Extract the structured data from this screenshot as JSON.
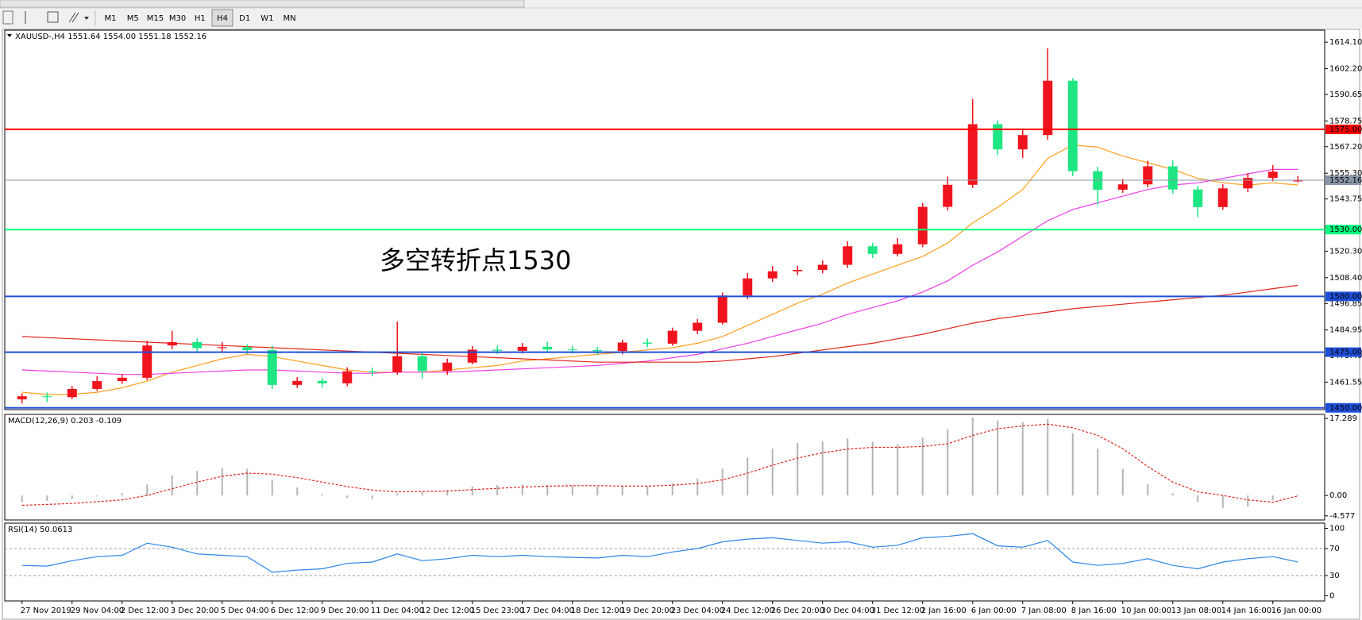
{
  "toolbar": {
    "timeframes": [
      "M1",
      "M5",
      "M15",
      "M30",
      "H1",
      "H4",
      "D1",
      "W1",
      "MN"
    ],
    "selected": 5
  },
  "chart_data": [
    {
      "type": "candlestick",
      "title": "XAUUSD-,H4  1551.64 1554.00 1551.18 1552.16",
      "categories": [
        "27 Nov 2019",
        null,
        "29 Nov 04:00",
        null,
        "2 Dec 12:00",
        null,
        "3 Dec 20:00",
        null,
        "5 Dec 04:00",
        null,
        "6 Dec 12:00",
        null,
        "9 Dec 20:00",
        null,
        "11 Dec 04:00",
        null,
        "12 Dec 12:00",
        null,
        "15 Dec 23:00",
        null,
        "17 Dec 04:00",
        null,
        "18 Dec 12:00",
        null,
        "19 Dec 20:00",
        null,
        "23 Dec 04:00",
        null,
        "24 Dec 12:00",
        null,
        "26 Dec 20:00",
        null,
        "30 Dec 04:00",
        null,
        "31 Dec 12:00",
        null,
        "2 Jan 16:00",
        null,
        "6 Jan 00:00",
        null,
        "7 Jan 08:00",
        null,
        "8 Jan 16:00",
        null,
        "10 Jan 00:00",
        null,
        "13 Jan 08:00",
        null,
        "14 Jan 16:00",
        null,
        "16 Jan 00:00",
        null
      ],
      "open": [
        1453.8,
        1455.2,
        1454.8,
        1458.5,
        1462.0,
        1463.5,
        1478.0,
        1479.5,
        1476.8,
        1477.2,
        1475.9,
        1460.3,
        1462.1,
        1461.0,
        1466.4,
        1466.0,
        1473.2,
        1466.5,
        1470.3,
        1476.1,
        1475.6,
        1477.4,
        1476.2,
        1476.0,
        1475.5,
        1479.3,
        1478.8,
        1484.6,
        1488.2,
        1500.4,
        1508.1,
        1511.3,
        1511.9,
        1514.2,
        1522.5,
        1519.1,
        1523.4,
        1540.2,
        1550.1,
        1577.3,
        1566.0,
        1572.4,
        1596.8,
        1556.2,
        1547.9,
        1550.3,
        1558.4,
        1548.0,
        1540.1,
        1548.5,
        1553.2,
        1551.64
      ],
      "high": [
        1456.5,
        1456.9,
        1459.8,
        1464.3,
        1465.2,
        1480.1,
        1484.6,
        1481.2,
        1479.4,
        1478.5,
        1477.9,
        1463.8,
        1463.5,
        1468.2,
        1468.1,
        1488.7,
        1474.6,
        1472.1,
        1477.8,
        1477.9,
        1479.1,
        1479.6,
        1477.8,
        1477.4,
        1480.6,
        1481.1,
        1486.0,
        1489.9,
        1501.8,
        1510.5,
        1513.6,
        1513.8,
        1516.1,
        1524.8,
        1524.1,
        1526.2,
        1541.9,
        1553.8,
        1588.6,
        1578.9,
        1574.8,
        1611.4,
        1597.9,
        1558.2,
        1552.7,
        1560.9,
        1561.2,
        1549.6,
        1550.3,
        1555.4,
        1558.9,
        1554.0
      ],
      "low": [
        1451.9,
        1452.6,
        1453.9,
        1457.6,
        1460.8,
        1462.4,
        1476.3,
        1474.9,
        1475.1,
        1474.3,
        1458.4,
        1458.9,
        1459.1,
        1459.7,
        1464.2,
        1464.9,
        1463.2,
        1464.8,
        1469.5,
        1474.1,
        1474.4,
        1474.8,
        1474.3,
        1473.9,
        1474.0,
        1477.2,
        1477.9,
        1483.1,
        1487.4,
        1498.9,
        1506.5,
        1509.6,
        1510.4,
        1512.8,
        1517.2,
        1518.0,
        1522.1,
        1538.6,
        1548.7,
        1563.4,
        1562.2,
        1570.3,
        1554.0,
        1541.2,
        1546.5,
        1548.9,
        1546.2,
        1535.6,
        1538.9,
        1546.8,
        1551.7,
        1551.18
      ],
      "close": [
        1455.2,
        1454.8,
        1458.5,
        1462.0,
        1463.5,
        1478.0,
        1479.5,
        1476.8,
        1477.2,
        1475.9,
        1460.3,
        1462.1,
        1461.0,
        1466.4,
        1466.0,
        1473.2,
        1466.5,
        1470.3,
        1476.1,
        1475.6,
        1477.4,
        1476.2,
        1476.0,
        1475.5,
        1479.3,
        1478.8,
        1484.6,
        1488.2,
        1500.4,
        1508.1,
        1511.3,
        1511.9,
        1514.2,
        1522.5,
        1519.1,
        1523.4,
        1540.2,
        1550.1,
        1577.3,
        1566.0,
        1572.4,
        1596.8,
        1556.2,
        1547.9,
        1550.3,
        1558.4,
        1548.0,
        1540.1,
        1548.5,
        1553.2,
        1556.0,
        1552.16
      ],
      "up_color": "#f0141e",
      "down_color": "#1ee682",
      "overlays": [
        {
          "color": "#ff9f1c",
          "values": [
            1457,
            1456,
            1456,
            1457,
            1459,
            1462,
            1466,
            1469,
            1472,
            1474,
            1473,
            1471,
            1469,
            1467,
            1466,
            1466,
            1466,
            1467,
            1468,
            1469,
            1471,
            1472,
            1473,
            1474,
            1475,
            1476,
            1477,
            1479,
            1482,
            1487,
            1492,
            1497,
            1501,
            1506,
            1510,
            1514,
            1518,
            1524,
            1533,
            1540,
            1548,
            1562,
            1568,
            1567,
            1563,
            1560,
            1557,
            1553,
            1551,
            1550,
            1551,
            1550
          ]
        },
        {
          "color": "#ee3ee8",
          "values": [
            1467,
            1466.5,
            1466,
            1465.5,
            1465,
            1465,
            1465.5,
            1466,
            1466.5,
            1467,
            1467,
            1466.5,
            1466,
            1465.5,
            1465.5,
            1466,
            1466,
            1466,
            1466.5,
            1467,
            1467.5,
            1468,
            1468.5,
            1469,
            1470,
            1471,
            1472.5,
            1474,
            1476.5,
            1479,
            1482,
            1485,
            1488,
            1492,
            1495,
            1498,
            1502,
            1507,
            1514,
            1520,
            1527,
            1534,
            1539,
            1542,
            1545,
            1548,
            1550,
            1551,
            1553,
            1555,
            1557,
            1557
          ]
        },
        {
          "color": "#e0261c",
          "values": [
            1482,
            1481.5,
            1481,
            1480.5,
            1480,
            1479.5,
            1479,
            1478.5,
            1478,
            1477.5,
            1477,
            1476.5,
            1476,
            1475.5,
            1475,
            1474.5,
            1474,
            1473.5,
            1473,
            1472.5,
            1472,
            1471.5,
            1471,
            1470.5,
            1470.5,
            1470.5,
            1470.5,
            1470.5,
            1471,
            1472,
            1473,
            1474.5,
            1476,
            1477.5,
            1479,
            1481,
            1483,
            1485.5,
            1488,
            1490,
            1491.5,
            1493,
            1494.5,
            1495.5,
            1496.5,
            1497.5,
            1498.5,
            1499.5,
            1500.5,
            1502,
            1503.5,
            1505
          ]
        }
      ],
      "hlines": [
        {
          "value": 1575,
          "label": "1575.00",
          "color": "#ff0000"
        },
        {
          "value": 1552.16,
          "color": "#8a96a8"
        },
        {
          "value": 1530,
          "label": "1530.00",
          "color": "#00ff7f"
        },
        {
          "value": 1500,
          "label": "1500.00",
          "color": "#1f4fd8"
        },
        {
          "value": 1475,
          "label": "1475.00",
          "color": "#1f4fd8"
        },
        {
          "value": 1450,
          "label": "1450.00",
          "color": "#1f4fd8"
        }
      ],
      "annotation": {
        "text": "多空转折点1530",
        "color": "#ff2a1a"
      },
      "ylim": [
        1449.2,
        1619.5
      ],
      "yticks": [
        {
          "value": 1614.1,
          "label": "1614.10"
        },
        {
          "value": 1602.2,
          "label": "1602.20"
        },
        1590.65,
        1578.75,
        {
          "value": 1567.2,
          "label": "1567.20"
        },
        {
          "value": 1555.3,
          "label": "1555.30"
        },
        1543.75,
        {
          "value": 1520.3,
          "label": "1520.30"
        },
        {
          "value": 1508.4,
          "label": "1508.40"
        },
        1496.85,
        1484.95,
        {
          "value": 1473.4,
          "label": "1473.40"
        },
        1461.55
      ]
    },
    {
      "type": "macd",
      "title": "MACD(12,26,9) 0.203 -0.109",
      "histogram": {
        "color": "#b4b4b4",
        "values": [
          -1.5,
          -1.2,
          -0.8,
          -0.2,
          0.5,
          2.5,
          4.5,
          5.5,
          6.2,
          6.0,
          3.5,
          1.8,
          0.3,
          -0.6,
          -0.8,
          0.5,
          0.8,
          1.2,
          2.0,
          2.3,
          2.5,
          2.4,
          2.2,
          2.0,
          2.0,
          2.1,
          2.8,
          3.8,
          6.0,
          8.5,
          10.5,
          11.8,
          12.2,
          12.8,
          12.0,
          11.5,
          13.0,
          14.8,
          17.5,
          16.8,
          16.5,
          17.2,
          14.0,
          10.5,
          6.0,
          2.5,
          0.5,
          -1.5,
          -2.8,
          -2.5,
          -1.0,
          0.203
        ]
      },
      "signal": {
        "color": "#e0261c",
        "values": [
          -2.2,
          -2.0,
          -1.8,
          -1.4,
          -1.0,
          0.0,
          1.5,
          3.0,
          4.3,
          5.0,
          4.8,
          4.0,
          3.0,
          2.0,
          1.2,
          0.8,
          0.9,
          1.0,
          1.3,
          1.6,
          1.9,
          2.1,
          2.2,
          2.2,
          2.1,
          2.1,
          2.3,
          2.7,
          3.5,
          5.0,
          6.8,
          8.4,
          9.6,
          10.4,
          10.8,
          10.8,
          11.0,
          11.6,
          13.5,
          15.0,
          15.6,
          16.0,
          15.2,
          13.5,
          10.5,
          6.5,
          3.0,
          0.8,
          0.0,
          -1.0,
          -1.5,
          -0.109
        ]
      },
      "ylim": [
        -5.5,
        18.2
      ],
      "yticks": [
        17.289,
        {
          "value": 0,
          "label": "0.00"
        },
        -4.577
      ]
    },
    {
      "type": "line",
      "title": "RSI(14) 50.0613",
      "series": [
        {
          "color": "#2b86e8",
          "values": [
            45,
            44,
            52,
            58,
            60,
            78,
            72,
            62,
            60,
            58,
            35,
            38,
            40,
            48,
            50,
            62,
            52,
            55,
            60,
            58,
            60,
            58,
            57,
            56,
            60,
            58,
            65,
            70,
            80,
            84,
            86,
            82,
            78,
            80,
            72,
            75,
            86,
            88,
            92,
            74,
            72,
            82,
            50,
            45,
            48,
            55,
            45,
            40,
            50,
            55,
            58,
            50.0613
          ]
        }
      ],
      "levels": [
        70,
        30
      ],
      "ylim": [
        -7.7,
        107.7
      ],
      "yticks": [
        100,
        70,
        30,
        0
      ]
    }
  ]
}
